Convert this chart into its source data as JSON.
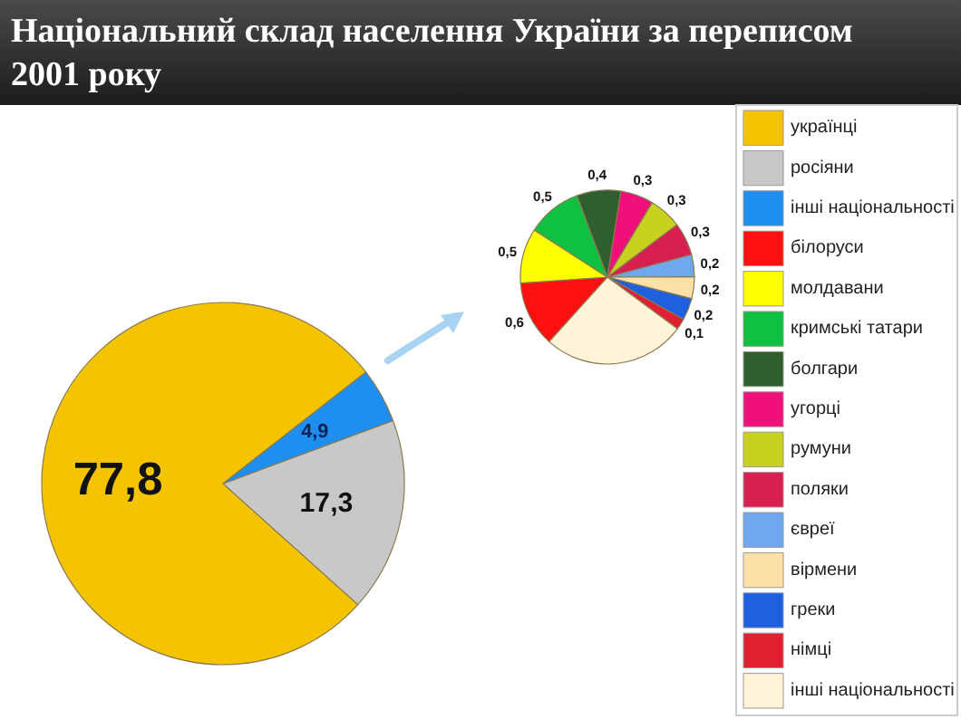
{
  "chart_data": [
    {
      "type": "pie",
      "title": "Національний склад населення України за переписом 2001 року",
      "categories": [
        "українці",
        "росіяни",
        "інші національності"
      ],
      "values": [
        77.8,
        17.3,
        4.9
      ],
      "colors": [
        "#f5c400",
        "#c8c8c8",
        "#1e8ff0"
      ],
      "value_labels": [
        "77,8",
        "17,3",
        "4,9"
      ],
      "legend": "right"
    },
    {
      "type": "pie",
      "categories": [
        "білоруси",
        "молдавани",
        "кримські татари",
        "болгари",
        "угорці",
        "румуни",
        "поляки",
        "євреї",
        "вірмени",
        "греки",
        "німці",
        "інші національності"
      ],
      "values": [
        0.6,
        0.5,
        0.5,
        0.4,
        0.3,
        0.3,
        0.3,
        0.2,
        0.2,
        0.2,
        0.1,
        1.3
      ],
      "colors": [
        "#ff1010",
        "#ffff00",
        "#10c040",
        "#2f5f2f",
        "#f0107a",
        "#c8d020",
        "#d82050",
        "#70a8f0",
        "#fbe0a8",
        "#2060e0",
        "#e02030",
        "#fff4d8"
      ],
      "value_labels": [
        "0,6",
        "0,5",
        "0,5",
        "0,4",
        "0,3",
        "0,3",
        "0,3",
        "0,2",
        "0,2",
        "0,2",
        "0,1",
        null
      ],
      "legend": "right"
    }
  ]
}
